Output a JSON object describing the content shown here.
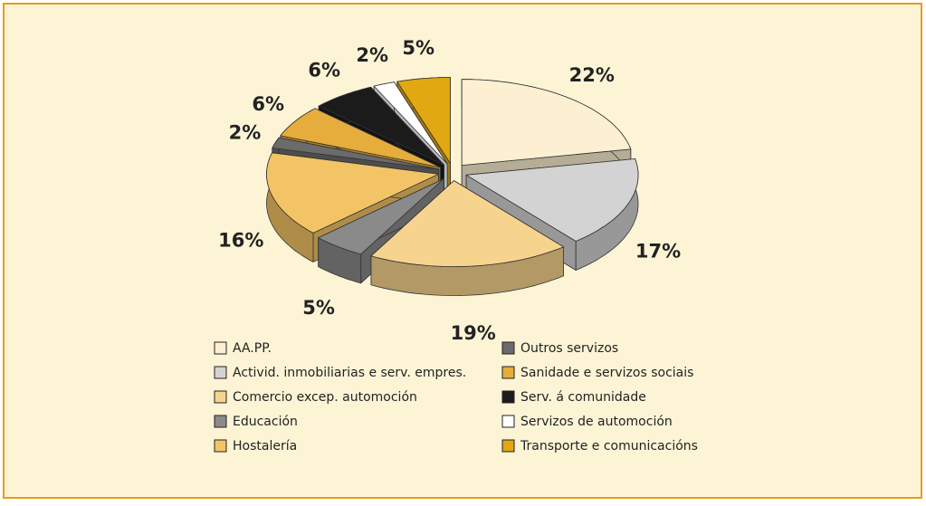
{
  "chart_data": {
    "type": "pie3d",
    "categories": [
      "AA.PP.",
      "Activid. inmobiliarias e serv. empres.",
      "Comercio excep. automoción",
      "Educación",
      "Hostalería",
      "Outros servizos",
      "Sanidade e servizos sociais",
      "Serv. á comunidade",
      "Servizos de automoción",
      "Transporte e comunicacións"
    ],
    "values": [
      22,
      17,
      19,
      5,
      16,
      2,
      6,
      6,
      2,
      5
    ],
    "value_labels": [
      "22%",
      "17%",
      "19%",
      "5%",
      "16%",
      "2%",
      "6%",
      "6%",
      "2%",
      "5%"
    ],
    "colors": [
      "#fdf0d2",
      "#d3d3d3",
      "#f7d48e",
      "#8a8a8a",
      "#f3c465",
      "#6b6b6b",
      "#e6ad3c",
      "#1b1b1b",
      "#ffffff",
      "#e1a812"
    ],
    "legend": "bottom"
  }
}
